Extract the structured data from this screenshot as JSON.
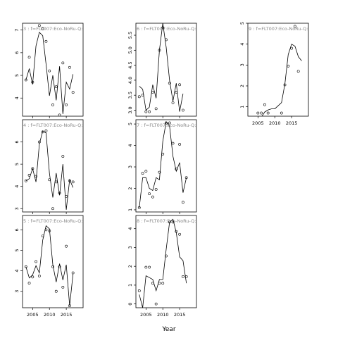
{
  "chart_data": {
    "type": "line",
    "xlabel": "Year",
    "panels": [
      {
        "title": "3 : f=FLT007:Eco-NoRu-Q:",
        "ylim": [
          3.2,
          7.3
        ],
        "yticks": [
          4,
          5,
          6,
          7
        ],
        "xlim": [
          2002,
          2020
        ],
        "xticks": [],
        "points": {
          "x": [
            2003,
            2004,
            2005,
            2007,
            2008,
            2009,
            2010,
            2011,
            2012,
            2013,
            2014,
            2015,
            2016,
            2017
          ],
          "y": [
            4.8,
            5.8,
            4.7,
            7.2,
            7.05,
            6.5,
            5.2,
            3.7,
            4.5,
            3.25,
            5.55,
            3.7,
            5.35,
            4.25
          ]
        },
        "line": {
          "x": [
            2003,
            2004,
            2005,
            2006,
            2007,
            2008,
            2009,
            2010,
            2011,
            2012,
            2013,
            2014,
            2015,
            2016,
            2017,
            2018
          ],
          "y": [
            4.8,
            5.3,
            4.6,
            6.3,
            6.9,
            6.75,
            5.5,
            4.1,
            5.0,
            3.9,
            5.4,
            3.3,
            4.7,
            4.4,
            5.05,
            null
          ]
        }
      },
      {
        "title": "4 : f=FLT007:Eco-NoRu-Q:",
        "ylim": [
          2.85,
          7.0
        ],
        "yticks": [
          3,
          4,
          5,
          6
        ],
        "xlim": [
          2002,
          2020
        ],
        "xticks": [],
        "points": {
          "x": [
            2003,
            2004,
            2005,
            2006,
            2007,
            2008,
            2009,
            2010,
            2011,
            2012,
            2013,
            2014,
            2015,
            2016,
            2017
          ],
          "y": [
            4.25,
            4.5,
            4.8,
            4.45,
            6.0,
            6.45,
            6.5,
            4.3,
            3.0,
            4.2,
            3.7,
            5.35,
            3.55,
            4.25,
            4.2
          ]
        },
        "line": {
          "x": [
            2003,
            2004,
            2005,
            2006,
            2007,
            2008,
            2009,
            2010,
            2011,
            2012,
            2013,
            2014,
            2015,
            2016,
            2017,
            2018
          ],
          "y": [
            4.25,
            4.35,
            4.8,
            4.2,
            5.9,
            6.5,
            6.4,
            4.6,
            3.5,
            4.6,
            3.6,
            5.0,
            2.95,
            4.3,
            3.95,
            null
          ]
        }
      },
      {
        "title": "5 : f=FLT007:Eco-NoRu-Q:",
        "ylim": [
          2.2,
          6.7
        ],
        "yticks": [
          3,
          4,
          5,
          6
        ],
        "xlim": [
          2002,
          2020
        ],
        "xticks": [
          "2005",
          "2010",
          "2015"
        ],
        "points": {
          "x": [
            2003,
            2004,
            2005,
            2006,
            2007,
            2008,
            2009,
            2010,
            2011,
            2012,
            2013,
            2014,
            2015,
            2016,
            2017
          ],
          "y": [
            4.2,
            3.4,
            3.7,
            4.45,
            3.75,
            5.7,
            6.0,
            5.95,
            4.2,
            3.0,
            4.2,
            3.2,
            5.2,
            2.3,
            3.9
          ]
        },
        "line": {
          "x": [
            2003,
            2004,
            2005,
            2006,
            2007,
            2008,
            2009,
            2010,
            2011,
            2012,
            2013,
            2014,
            2015,
            2016,
            2017,
            2018
          ],
          "y": [
            4.2,
            3.65,
            3.8,
            4.25,
            3.9,
            5.5,
            6.2,
            6.05,
            4.3,
            3.45,
            4.35,
            3.55,
            4.3,
            2.3,
            3.85,
            null
          ]
        }
      },
      {
        "title": "6 : f=FLT007:Eco-NoRu-Q:",
        "ylim": [
          2.8,
          5.9
        ],
        "yticks": [
          3.0,
          3.5,
          4.0,
          4.5,
          5.0,
          5.5
        ],
        "xlim": [
          2002,
          2020
        ],
        "xticks": [],
        "points": {
          "x": [
            2003,
            2004,
            2005,
            2006,
            2007,
            2008,
            2009,
            2010,
            2011,
            2012,
            2013,
            2014,
            2015,
            2016
          ],
          "y": [
            3.45,
            3.5,
            2.95,
            2.95,
            3.6,
            3.05,
            5.0,
            5.75,
            5.35,
            3.9,
            3.25,
            3.6,
            3.85,
            3.0
          ]
        },
        "line": {
          "x": [
            2003,
            2004,
            2005,
            2006,
            2007,
            2008,
            2009,
            2010,
            2011,
            2012,
            2013,
            2014,
            2015,
            2016,
            2017
          ],
          "y": [
            3.8,
            3.7,
            3.0,
            3.1,
            3.85,
            3.4,
            5.0,
            5.9,
            5.1,
            4.0,
            3.3,
            3.9,
            2.95,
            3.55,
            null
          ]
        }
      },
      {
        "title": "7 : f=FLT007:Eco-NoRu-Q:",
        "ylim": [
          0.9,
          5.2
        ],
        "yticks": [
          1,
          2,
          3,
          4,
          5
        ],
        "xlim": [
          2002,
          2020
        ],
        "xticks": [],
        "points": {
          "x": [
            2003,
            2004,
            2005,
            2006,
            2007,
            2008,
            2009,
            2010,
            2011,
            2012,
            2013,
            2014,
            2015,
            2016,
            2017
          ],
          "y": [
            1.1,
            2.7,
            2.8,
            1.75,
            1.6,
            1.95,
            2.75,
            3.6,
            5.05,
            5.05,
            4.1,
            2.9,
            4.05,
            1.35,
            2.5
          ]
        },
        "line": {
          "x": [
            2003,
            2004,
            2005,
            2006,
            2007,
            2008,
            2009,
            2010,
            2011,
            2012,
            2013,
            2014,
            2015,
            2016,
            2017,
            2018
          ],
          "y": [
            1.1,
            2.5,
            2.5,
            2.0,
            1.9,
            2.5,
            2.4,
            4.2,
            5.1,
            4.9,
            3.5,
            2.8,
            3.2,
            1.8,
            2.5,
            null
          ]
        }
      },
      {
        "title": "8 : f=FLT007:Eco-NoRu-Q:",
        "ylim": [
          -0.2,
          4.7
        ],
        "yticks": [
          0,
          1,
          2,
          3,
          4
        ],
        "xlim": [
          2002,
          2020
        ],
        "xticks": [
          "2005",
          "2010",
          "2015"
        ],
        "points": {
          "x": [
            2003,
            2005,
            2006,
            2007,
            2008,
            2009,
            2010,
            2011,
            2012,
            2013,
            2014,
            2015,
            2016,
            2017
          ],
          "y": [
            0.7,
            1.95,
            1.95,
            1.1,
            0.0,
            1.1,
            1.1,
            2.55,
            4.35,
            4.35,
            3.85,
            3.7,
            1.45,
            1.45
          ]
        },
        "line": {
          "x": [
            2003,
            2004,
            2005,
            2006,
            2007,
            2008,
            2009,
            2010,
            2011,
            2012,
            2013,
            2014,
            2015,
            2016,
            2017
          ],
          "y": [
            0.5,
            -0.2,
            1.5,
            1.4,
            1.3,
            0.7,
            1.3,
            1.3,
            2.9,
            4.35,
            4.5,
            3.8,
            2.5,
            2.3,
            1.1
          ]
        }
      },
      {
        "title": "9 : f=FLT007:Eco-NoRu-Q:",
        "ylim": [
          0.55,
          5.0
        ],
        "yticks": [
          1,
          2,
          3,
          4,
          5
        ],
        "xlim": [
          2002,
          2020
        ],
        "xticks": [
          "2005",
          "2010",
          "2015"
        ],
        "points": {
          "x": [
            2005,
            2006,
            2007,
            2008,
            2012,
            2013,
            2014,
            2015,
            2016,
            2017
          ],
          "y": [
            0.7,
            0.7,
            1.1,
            0.7,
            0.7,
            2.05,
            2.95,
            3.8,
            4.85,
            2.7
          ]
        },
        "line": {
          "x": [
            2004,
            2006,
            2007,
            2008,
            2009,
            2010,
            2011,
            2012,
            2013,
            2014,
            2015,
            2016,
            2017,
            2018
          ],
          "y": [
            null,
            0.5,
            0.75,
            0.85,
            0.9,
            0.9,
            1.05,
            1.2,
            2.1,
            3.5,
            4.0,
            3.9,
            3.4,
            3.2
          ]
        }
      }
    ]
  }
}
